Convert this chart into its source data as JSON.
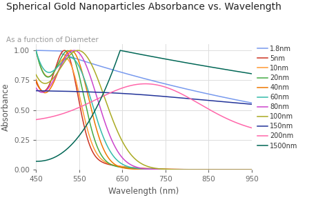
{
  "title": "Spherical Gold Nanoparticles Absorbance vs. Wavelength",
  "subtitle": "As a function of Diameter",
  "xlabel": "Wavelength (nm)",
  "ylabel": "Absorbance",
  "xlim": [
    450,
    950
  ],
  "ylim": [
    0,
    1.05
  ],
  "background_color": "#ffffff",
  "plot_bg_color": "#ffffff",
  "grid_color": "#dddddd",
  "series": [
    {
      "label": "1.8nm",
      "color": "#7799ee"
    },
    {
      "label": "5nm",
      "color": "#cc3322"
    },
    {
      "label": "10nm",
      "color": "#ff9933"
    },
    {
      "label": "20nm",
      "color": "#44aa44"
    },
    {
      "label": "40nm",
      "color": "#ee7700"
    },
    {
      "label": "60nm",
      "color": "#33bbaa"
    },
    {
      "label": "80nm",
      "color": "#cc44cc"
    },
    {
      "label": "100nm",
      "color": "#aaaa22"
    },
    {
      "label": "150nm",
      "color": "#223399"
    },
    {
      "label": "200nm",
      "color": "#ff66aa"
    },
    {
      "label": "1500nm",
      "color": "#006655"
    }
  ]
}
